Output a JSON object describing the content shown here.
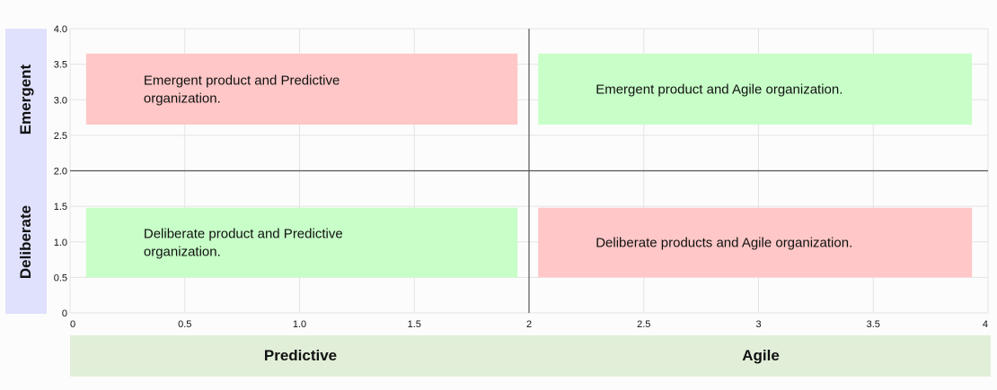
{
  "colors": {
    "red_box": "#ffc7c7",
    "green_box": "#c8ffc8",
    "y_label_bg": "#dfe1fd",
    "x_label_bg": "#e1efd9",
    "grid": "#e4e4e4",
    "divider": "#555555"
  },
  "side_labels": {
    "y_top": "Emergent",
    "y_bottom": "Deliberate",
    "x_left": "Predictive",
    "x_right": "Agile"
  },
  "chart_data": {
    "type": "quadrant",
    "xlim": [
      0,
      4
    ],
    "ylim": [
      0,
      4
    ],
    "divider": {
      "x": 2,
      "y": 2
    },
    "x_ticks": [
      {
        "value": 0,
        "label": "0"
      },
      {
        "value": 0.5,
        "label": "0.5"
      },
      {
        "value": 1,
        "label": "1.0"
      },
      {
        "value": 1.5,
        "label": "1.5"
      },
      {
        "value": 2,
        "label": "2"
      },
      {
        "value": 2.5,
        "label": "2.5"
      },
      {
        "value": 3,
        "label": "3"
      },
      {
        "value": 3.5,
        "label": "3.5"
      },
      {
        "value": 4,
        "label": "4"
      }
    ],
    "y_ticks": [
      {
        "value": 0,
        "label": "0"
      },
      {
        "value": 0.5,
        "label": "0.5"
      },
      {
        "value": 1,
        "label": "1.0"
      },
      {
        "value": 1.5,
        "label": "1.5"
      },
      {
        "value": 2,
        "label": "2.0"
      },
      {
        "value": 2.5,
        "label": "2.5"
      },
      {
        "value": 3,
        "label": "3.0"
      },
      {
        "value": 3.5,
        "label": "3.5"
      },
      {
        "value": 4,
        "label": "4.0"
      }
    ],
    "quadrants": [
      {
        "x0": 0.07,
        "x1": 1.95,
        "y0": 2.65,
        "y1": 3.65,
        "color": "red",
        "lines": [
          "Emergent product and Predictive",
          "organization."
        ]
      },
      {
        "x0": 2.04,
        "x1": 3.93,
        "y0": 2.65,
        "y1": 3.65,
        "color": "green",
        "lines": [
          "Emergent product and Agile organization."
        ]
      },
      {
        "x0": 0.07,
        "x1": 1.95,
        "y0": 0.5,
        "y1": 1.48,
        "color": "green",
        "lines": [
          "Deliberate product and Predictive",
          "organization."
        ]
      },
      {
        "x0": 2.04,
        "x1": 3.93,
        "y0": 0.5,
        "y1": 1.48,
        "color": "red",
        "lines": [
          "Deliberate products and Agile organization."
        ]
      }
    ]
  }
}
